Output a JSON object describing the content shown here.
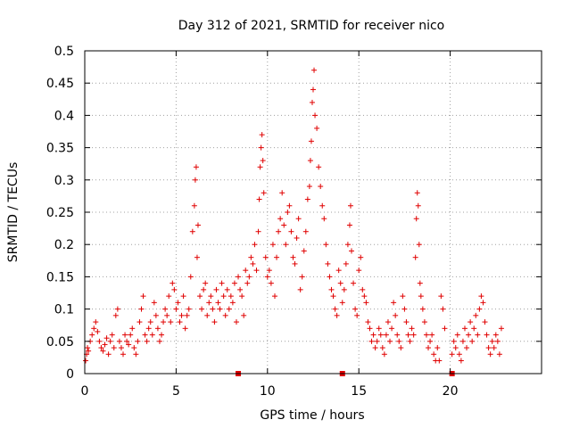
{
  "chart_data": {
    "type": "scatter",
    "title": "Day 312 of 2021, SRMTID for receiver nico",
    "xlabel": "GPS time / hours",
    "ylabel": "SRMTID / TECUs",
    "xlim": [
      0,
      25
    ],
    "ylim": [
      0,
      0.5
    ],
    "xticks": [
      0,
      5,
      10,
      15,
      20
    ],
    "xtick_labels": [
      "0",
      "5",
      "10",
      "15",
      "20"
    ],
    "yticks": [
      0,
      0.05,
      0.1,
      0.15,
      0.2,
      0.25,
      0.3,
      0.35,
      0.4,
      0.45,
      0.5
    ],
    "ytick_labels": [
      "0",
      "0.05",
      "0.1",
      "0.15",
      "0.2",
      "0.25",
      "0.3",
      "0.35",
      "0.4",
      "0.45",
      "0.5"
    ],
    "grid": true,
    "marker": "plus",
    "color": "#e00000",
    "series": [
      {
        "name": "SRMTID",
        "points": [
          [
            0.05,
            0.02
          ],
          [
            0.1,
            0.03
          ],
          [
            0.15,
            0.04
          ],
          [
            0.2,
            0.035
          ],
          [
            0.3,
            0.05
          ],
          [
            0.4,
            0.06
          ],
          [
            0.5,
            0.07
          ],
          [
            0.6,
            0.08
          ],
          [
            0.7,
            0.065
          ],
          [
            0.8,
            0.05
          ],
          [
            0.9,
            0.04
          ],
          [
            1.0,
            0.035
          ],
          [
            1.1,
            0.045
          ],
          [
            1.2,
            0.055
          ],
          [
            1.3,
            0.03
          ],
          [
            1.4,
            0.05
          ],
          [
            1.5,
            0.06
          ],
          [
            1.6,
            0.04
          ],
          [
            1.7,
            0.09
          ],
          [
            1.8,
            0.1
          ],
          [
            1.9,
            0.05
          ],
          [
            2.0,
            0.04
          ],
          [
            2.1,
            0.03
          ],
          [
            2.2,
            0.06
          ],
          [
            2.3,
            0.05
          ],
          [
            2.4,
            0.045
          ],
          [
            2.5,
            0.06
          ],
          [
            2.6,
            0.07
          ],
          [
            2.7,
            0.04
          ],
          [
            2.8,
            0.03
          ],
          [
            2.9,
            0.05
          ],
          [
            3.0,
            0.08
          ],
          [
            3.1,
            0.1
          ],
          [
            3.2,
            0.12
          ],
          [
            3.3,
            0.06
          ],
          [
            3.4,
            0.05
          ],
          [
            3.5,
            0.07
          ],
          [
            3.6,
            0.08
          ],
          [
            3.7,
            0.06
          ],
          [
            3.8,
            0.11
          ],
          [
            3.9,
            0.09
          ],
          [
            4.0,
            0.07
          ],
          [
            4.1,
            0.05
          ],
          [
            4.2,
            0.06
          ],
          [
            4.3,
            0.08
          ],
          [
            4.4,
            0.1
          ],
          [
            4.5,
            0.09
          ],
          [
            4.6,
            0.12
          ],
          [
            4.7,
            0.08
          ],
          [
            4.8,
            0.14
          ],
          [
            4.9,
            0.13
          ],
          [
            5.0,
            0.1
          ],
          [
            5.1,
            0.11
          ],
          [
            5.2,
            0.08
          ],
          [
            5.3,
            0.09
          ],
          [
            5.4,
            0.12
          ],
          [
            5.5,
            0.07
          ],
          [
            5.6,
            0.09
          ],
          [
            5.7,
            0.1
          ],
          [
            5.8,
            0.15
          ],
          [
            5.9,
            0.22
          ],
          [
            6.0,
            0.26
          ],
          [
            6.05,
            0.3
          ],
          [
            6.1,
            0.32
          ],
          [
            6.15,
            0.18
          ],
          [
            6.2,
            0.23
          ],
          [
            6.3,
            0.12
          ],
          [
            6.4,
            0.1
          ],
          [
            6.5,
            0.13
          ],
          [
            6.6,
            0.14
          ],
          [
            6.7,
            0.09
          ],
          [
            6.8,
            0.11
          ],
          [
            6.9,
            0.12
          ],
          [
            7.0,
            0.1
          ],
          [
            7.1,
            0.08
          ],
          [
            7.2,
            0.13
          ],
          [
            7.3,
            0.11
          ],
          [
            7.4,
            0.1
          ],
          [
            7.5,
            0.14
          ],
          [
            7.6,
            0.12
          ],
          [
            7.7,
            0.09
          ],
          [
            7.8,
            0.13
          ],
          [
            7.9,
            0.1
          ],
          [
            8.0,
            0.12
          ],
          [
            8.1,
            0.11
          ],
          [
            8.2,
            0.14
          ],
          [
            8.3,
            0.08
          ],
          [
            8.4,
            0.15
          ],
          [
            8.5,
            0.13
          ],
          [
            8.6,
            0.12
          ],
          [
            8.7,
            0.09
          ],
          [
            8.8,
            0.16
          ],
          [
            8.9,
            0.14
          ],
          [
            9.0,
            0.15
          ],
          [
            9.1,
            0.18
          ],
          [
            9.2,
            0.17
          ],
          [
            9.3,
            0.2
          ],
          [
            9.4,
            0.16
          ],
          [
            9.5,
            0.22
          ],
          [
            9.55,
            0.27
          ],
          [
            9.6,
            0.32
          ],
          [
            9.65,
            0.35
          ],
          [
            9.7,
            0.37
          ],
          [
            9.75,
            0.33
          ],
          [
            9.8,
            0.28
          ],
          [
            9.9,
            0.18
          ],
          [
            10.0,
            0.15
          ],
          [
            10.1,
            0.16
          ],
          [
            10.2,
            0.14
          ],
          [
            10.3,
            0.2
          ],
          [
            10.4,
            0.12
          ],
          [
            10.5,
            0.18
          ],
          [
            10.6,
            0.22
          ],
          [
            10.7,
            0.24
          ],
          [
            10.8,
            0.28
          ],
          [
            10.9,
            0.23
          ],
          [
            11.0,
            0.2
          ],
          [
            11.1,
            0.25
          ],
          [
            11.2,
            0.26
          ],
          [
            11.3,
            0.22
          ],
          [
            11.4,
            0.18
          ],
          [
            11.5,
            0.17
          ],
          [
            11.6,
            0.21
          ],
          [
            11.7,
            0.24
          ],
          [
            11.8,
            0.13
          ],
          [
            11.9,
            0.15
          ],
          [
            12.0,
            0.19
          ],
          [
            12.1,
            0.22
          ],
          [
            12.2,
            0.27
          ],
          [
            12.3,
            0.29
          ],
          [
            12.35,
            0.33
          ],
          [
            12.4,
            0.36
          ],
          [
            12.45,
            0.42
          ],
          [
            12.5,
            0.44
          ],
          [
            12.55,
            0.47
          ],
          [
            12.6,
            0.4
          ],
          [
            12.7,
            0.38
          ],
          [
            12.8,
            0.32
          ],
          [
            12.9,
            0.29
          ],
          [
            13.0,
            0.26
          ],
          [
            13.1,
            0.24
          ],
          [
            13.2,
            0.2
          ],
          [
            13.3,
            0.17
          ],
          [
            13.4,
            0.15
          ],
          [
            13.5,
            0.13
          ],
          [
            13.6,
            0.12
          ],
          [
            13.7,
            0.1
          ],
          [
            13.8,
            0.09
          ],
          [
            13.9,
            0.16
          ],
          [
            14.0,
            0.14
          ],
          [
            14.1,
            0.11
          ],
          [
            14.2,
            0.13
          ],
          [
            14.3,
            0.17
          ],
          [
            14.4,
            0.2
          ],
          [
            14.5,
            0.23
          ],
          [
            14.55,
            0.26
          ],
          [
            14.6,
            0.19
          ],
          [
            14.7,
            0.14
          ],
          [
            14.8,
            0.1
          ],
          [
            14.9,
            0.09
          ],
          [
            15.0,
            0.16
          ],
          [
            15.1,
            0.18
          ],
          [
            15.2,
            0.13
          ],
          [
            15.3,
            0.12
          ],
          [
            15.4,
            0.11
          ],
          [
            15.5,
            0.08
          ],
          [
            15.6,
            0.07
          ],
          [
            15.7,
            0.05
          ],
          [
            15.8,
            0.06
          ],
          [
            15.9,
            0.04
          ],
          [
            16.0,
            0.05
          ],
          [
            16.1,
            0.07
          ],
          [
            16.2,
            0.06
          ],
          [
            16.3,
            0.04
          ],
          [
            16.4,
            0.03
          ],
          [
            16.5,
            0.06
          ],
          [
            16.6,
            0.08
          ],
          [
            16.7,
            0.05
          ],
          [
            16.8,
            0.07
          ],
          [
            16.9,
            0.11
          ],
          [
            17.0,
            0.09
          ],
          [
            17.1,
            0.06
          ],
          [
            17.2,
            0.05
          ],
          [
            17.3,
            0.04
          ],
          [
            17.4,
            0.12
          ],
          [
            17.5,
            0.1
          ],
          [
            17.6,
            0.08
          ],
          [
            17.7,
            0.06
          ],
          [
            17.8,
            0.05
          ],
          [
            17.9,
            0.07
          ],
          [
            18.0,
            0.06
          ],
          [
            18.1,
            0.18
          ],
          [
            18.15,
            0.24
          ],
          [
            18.2,
            0.28
          ],
          [
            18.25,
            0.26
          ],
          [
            18.3,
            0.2
          ],
          [
            18.35,
            0.14
          ],
          [
            18.4,
            0.12
          ],
          [
            18.5,
            0.1
          ],
          [
            18.6,
            0.08
          ],
          [
            18.7,
            0.06
          ],
          [
            18.8,
            0.04
          ],
          [
            18.9,
            0.05
          ],
          [
            19.0,
            0.06
          ],
          [
            19.1,
            0.03
          ],
          [
            19.2,
            0.02
          ],
          [
            19.3,
            0.04
          ],
          [
            19.4,
            0.02
          ],
          [
            19.5,
            0.12
          ],
          [
            19.6,
            0.1
          ],
          [
            19.7,
            0.07
          ],
          [
            20.1,
            0.03
          ],
          [
            20.2,
            0.05
          ],
          [
            20.3,
            0.04
          ],
          [
            20.4,
            0.06
          ],
          [
            20.5,
            0.03
          ],
          [
            20.6,
            0.02
          ],
          [
            20.7,
            0.05
          ],
          [
            20.8,
            0.07
          ],
          [
            20.9,
            0.04
          ],
          [
            21.0,
            0.06
          ],
          [
            21.1,
            0.08
          ],
          [
            21.2,
            0.05
          ],
          [
            21.3,
            0.07
          ],
          [
            21.4,
            0.09
          ],
          [
            21.5,
            0.06
          ],
          [
            21.6,
            0.1
          ],
          [
            21.7,
            0.12
          ],
          [
            21.8,
            0.11
          ],
          [
            21.9,
            0.08
          ],
          [
            22.0,
            0.06
          ],
          [
            22.1,
            0.04
          ],
          [
            22.2,
            0.03
          ],
          [
            22.3,
            0.05
          ],
          [
            22.4,
            0.04
          ],
          [
            22.5,
            0.06
          ],
          [
            22.6,
            0.05
          ],
          [
            22.7,
            0.03
          ],
          [
            22.8,
            0.07
          ]
        ]
      },
      {
        "name": "zero markers",
        "marker": "square",
        "points": [
          [
            8.4,
            0
          ],
          [
            14.1,
            0
          ],
          [
            20.1,
            0
          ]
        ]
      }
    ]
  }
}
